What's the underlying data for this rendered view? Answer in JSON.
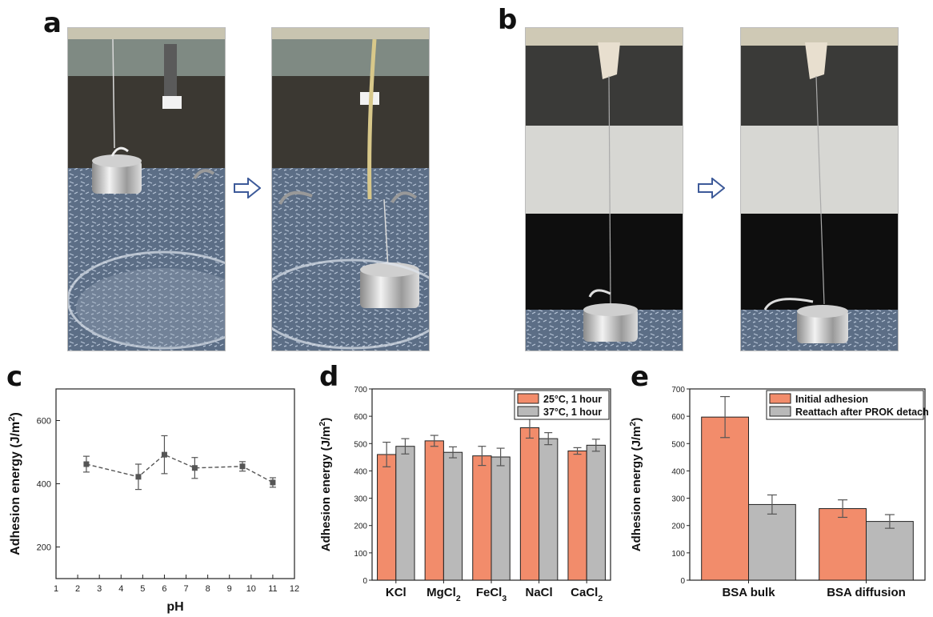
{
  "panels": {
    "a": "a",
    "b": "b",
    "c": "c",
    "d": "d",
    "e": "e"
  },
  "photos": [
    {
      "name": "panel-a-photo-before",
      "scene": "weight hanging from hydrogel strip above petri dish"
    },
    {
      "name": "panel-a-photo-after",
      "scene": "weight dropped into petri dish after detachment"
    },
    {
      "name": "panel-b-photo-before",
      "scene": "weight hanging from long stretched fiber"
    },
    {
      "name": "panel-b-photo-after",
      "scene": "weight hanging from stretched fiber"
    }
  ],
  "colors": {
    "orange": "#F28C6B",
    "gray": "#B9B9B9",
    "line": "#555555"
  },
  "chart_data": [
    {
      "id": "c",
      "type": "line",
      "xlabel": "pH",
      "ylabel": "Adhesion energy (J/m²)",
      "xlim": [
        1,
        12
      ],
      "ylim": [
        100,
        700
      ],
      "xticks": [
        1,
        2,
        3,
        4,
        5,
        6,
        7,
        8,
        9,
        10,
        11,
        12
      ],
      "yticks": [
        200,
        400,
        600
      ],
      "x": [
        2.4,
        4.8,
        6.0,
        7.4,
        9.6,
        11.0
      ],
      "y": [
        462,
        422,
        492,
        450,
        455,
        404
      ],
      "err": [
        25,
        40,
        60,
        33,
        15,
        15
      ]
    },
    {
      "id": "d",
      "type": "bar",
      "ylabel": "Adhesion energy (J/m²)",
      "ylim": [
        0,
        700
      ],
      "yticks": [
        0,
        100,
        200,
        300,
        400,
        500,
        600,
        700
      ],
      "categories": [
        {
          "base": "KCl",
          "sub": ""
        },
        {
          "base": "MgCl",
          "sub": "2"
        },
        {
          "base": "FeCl",
          "sub": "3"
        },
        {
          "base": "NaCl",
          "sub": ""
        },
        {
          "base": "CaCl",
          "sub": "2"
        }
      ],
      "legend_position": "top-right",
      "series": [
        {
          "name": "25°C, 1 hour",
          "color": "#F28C6B",
          "values": [
            460,
            510,
            455,
            558,
            473
          ],
          "err": [
            45,
            20,
            35,
            38,
            12
          ]
        },
        {
          "name": "37°C, 1 hour",
          "color": "#B9B9B9",
          "values": [
            490,
            468,
            451,
            518,
            494
          ],
          "err": [
            28,
            20,
            32,
            22,
            22
          ]
        }
      ]
    },
    {
      "id": "e",
      "type": "bar",
      "ylabel": "Adhesion energy (J/m²)",
      "ylim": [
        0,
        700
      ],
      "yticks": [
        0,
        100,
        200,
        300,
        400,
        500,
        600,
        700
      ],
      "categories": [
        {
          "base": "BSA bulk",
          "sub": ""
        },
        {
          "base": "BSA diffusion",
          "sub": ""
        }
      ],
      "legend_position": "top-right",
      "series": [
        {
          "name": "Initial adhesion",
          "color": "#F28C6B",
          "values": [
            597,
            262
          ],
          "err": [
            75,
            32
          ]
        },
        {
          "name": "Reattach after PROK detach",
          "color": "#B9B9B9",
          "values": [
            277,
            215
          ],
          "err": [
            35,
            25
          ]
        }
      ]
    }
  ]
}
